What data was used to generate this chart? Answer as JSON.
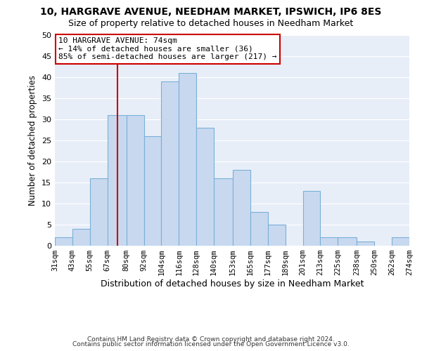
{
  "title1": "10, HARGRAVE AVENUE, NEEDHAM MARKET, IPSWICH, IP6 8ES",
  "title2": "Size of property relative to detached houses in Needham Market",
  "xlabel": "Distribution of detached houses by size in Needham Market",
  "ylabel": "Number of detached properties",
  "footer1": "Contains HM Land Registry data © Crown copyright and database right 2024.",
  "footer2": "Contains public sector information licensed under the Open Government Licence v3.0.",
  "bin_labels": [
    "31sqm",
    "43sqm",
    "55sqm",
    "67sqm",
    "80sqm",
    "92sqm",
    "104sqm",
    "116sqm",
    "128sqm",
    "140sqm",
    "153sqm",
    "165sqm",
    "177sqm",
    "189sqm",
    "201sqm",
    "213sqm",
    "225sqm",
    "238sqm",
    "250sqm",
    "262sqm",
    "274sqm"
  ],
  "bin_edges": [
    31,
    43,
    55,
    67,
    80,
    92,
    104,
    116,
    128,
    140,
    153,
    165,
    177,
    189,
    201,
    213,
    225,
    238,
    250,
    262,
    274
  ],
  "bar_values": [
    2,
    4,
    16,
    31,
    31,
    26,
    39,
    41,
    28,
    16,
    18,
    8,
    5,
    0,
    13,
    2,
    2,
    1,
    0,
    2
  ],
  "bar_color": "#c8d9ef",
  "bar_edge_color": "#7ab0d8",
  "vline_x": 74,
  "vline_color": "#cc0000",
  "annotation_box_text": "10 HARGRAVE AVENUE: 74sqm\n← 14% of detached houses are smaller (36)\n85% of semi-detached houses are larger (217) →",
  "annotation_box_color": "#ffffff",
  "annotation_box_edge_color": "#cc0000",
  "ylim": [
    0,
    50
  ],
  "yticks": [
    0,
    5,
    10,
    15,
    20,
    25,
    30,
    35,
    40,
    45,
    50
  ],
  "plot_bg_color": "#e8eef8",
  "background_color": "#ffffff",
  "grid_color": "#ffffff"
}
